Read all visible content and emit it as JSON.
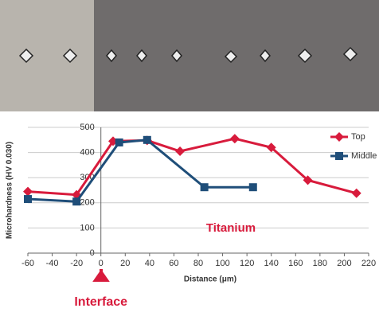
{
  "chart_data": {
    "type": "line",
    "y_label": "Microhardness (HV 0.030)",
    "x_label": "Distance (μm)",
    "annotations": [
      "Titanium",
      "Interface"
    ],
    "xlim": [
      -60,
      220
    ],
    "xticks": [
      -60,
      -40,
      -20,
      0,
      20,
      40,
      60,
      80,
      100,
      120,
      140,
      160,
      180,
      200,
      220
    ],
    "ylim": [
      0,
      500
    ],
    "yticks": [
      0,
      100,
      200,
      300,
      400,
      500
    ],
    "grid": true,
    "legend": "right",
    "series": [
      {
        "name": "Top",
        "color": "#d81b3c",
        "marker": "diamond",
        "x": [
          -60,
          -20,
          10,
          38,
          65,
          110,
          140,
          170,
          210
        ],
        "values": [
          245,
          232,
          445,
          448,
          405,
          455,
          420,
          290,
          238
        ]
      },
      {
        "name": "Middle",
        "color": "#1f4e79",
        "marker": "square",
        "x": [
          -60,
          -20,
          15,
          38,
          85,
          125
        ],
        "values": [
          215,
          205,
          440,
          450,
          262,
          262
        ]
      }
    ]
  }
}
